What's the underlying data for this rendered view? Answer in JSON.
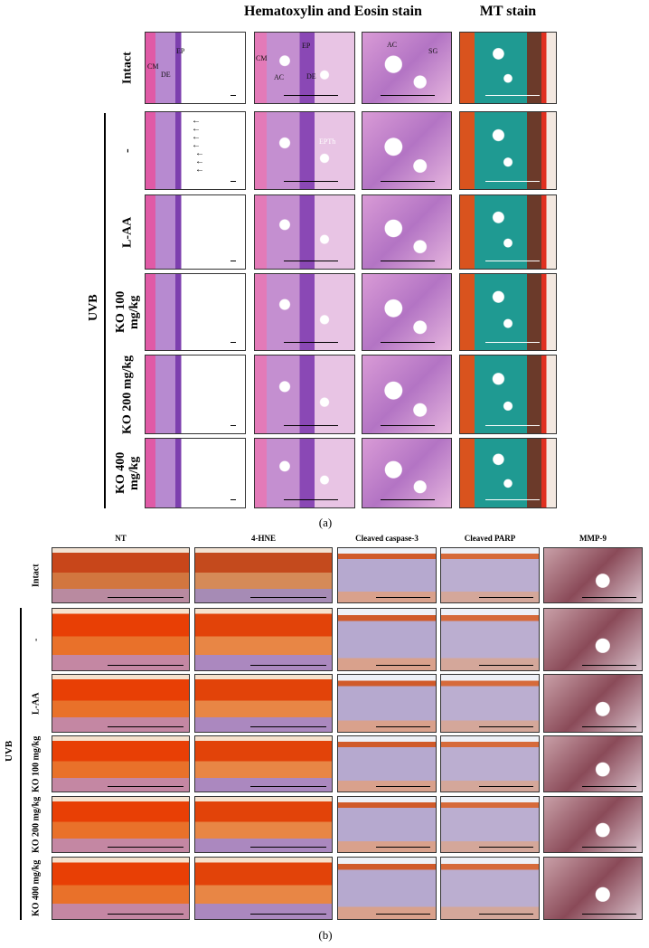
{
  "panel_a": {
    "headers": [
      "Hematoxylin and Eosin stain",
      "MT stain"
    ],
    "rows": [
      "Intact",
      "-",
      "L-AA",
      "KO 100 mg/kg",
      "KO 200 mg/kg",
      "KO 400 mg/kg"
    ],
    "group": "UVB",
    "annotations": [
      "CM",
      "EP",
      "DE",
      "CM",
      "EP",
      "AC",
      "DE",
      "AC",
      "SG",
      "EPTh"
    ],
    "caption": "(a)"
  },
  "panel_b": {
    "headers": [
      "NT",
      "4-HNE",
      "Cleaved caspase-3",
      "Cleaved PARP",
      "MMP-9"
    ],
    "rows": [
      "Intact",
      "-",
      "L-AA",
      "KO 100 mg/kg",
      "KO 200 mg/kg",
      "KO 400 mg/kg"
    ],
    "group": "UVB",
    "caption": "(b)"
  }
}
